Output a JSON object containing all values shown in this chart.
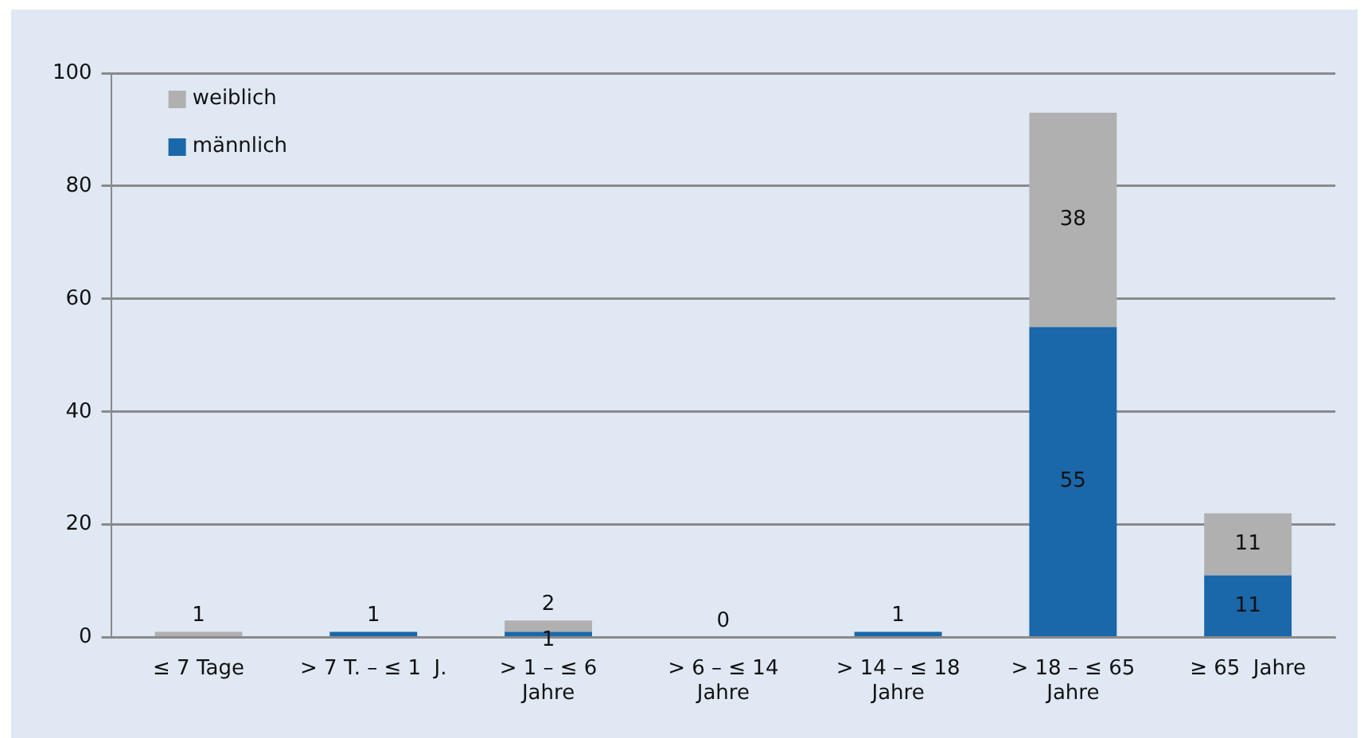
{
  "chart_data": {
    "type": "bar",
    "stacked": true,
    "categories": [
      "≤ 7 Tage",
      "> 7 T. – ≤ 1  J.",
      "> 1 – ≤ 6\nJahre",
      "> 6 – ≤ 14\nJahre",
      "> 14 – ≤ 18\nJahre",
      "> 18 – ≤ 65\nJahre",
      "≥ 65  Jahre"
    ],
    "series": [
      {
        "name": "männlich",
        "color": "#1a67aa",
        "values": [
          0,
          1,
          1,
          0,
          1,
          55,
          11
        ],
        "value_labels": [
          null,
          "1",
          "1",
          null,
          "1",
          "55",
          "11"
        ]
      },
      {
        "name": "weiblich",
        "color": "#b0b0b0",
        "values": [
          1,
          0,
          2,
          0,
          0,
          38,
          11
        ],
        "value_labels": [
          "1",
          null,
          "2",
          "0",
          null,
          "38",
          "11"
        ]
      }
    ],
    "ylim": [
      0,
      100
    ],
    "yticks": [
      0,
      20,
      40,
      60,
      80,
      100
    ],
    "grid": "y",
    "legend": "top left"
  }
}
